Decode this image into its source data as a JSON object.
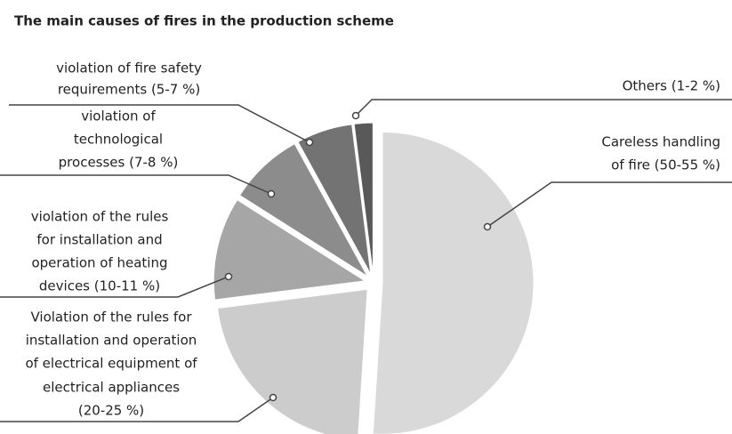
{
  "chart_data": {
    "type": "pie",
    "title": "The main causes of fires in the production scheme",
    "categories": [
      [
        "Careless handling",
        "of fire (50-55 %)"
      ],
      [
        "Violation of the rules for",
        "installation and operation",
        "of electrical equipment of",
        "electrical appliances",
        "(20-25 %)"
      ],
      [
        "violation of the rules",
        "for installation and",
        "operation of heating",
        "devices (10-11 %)"
      ],
      [
        "violation of",
        "technological",
        "processes (7-8 %)"
      ],
      [
        "violation of fire safety",
        "requirements (5-7 %)"
      ],
      [
        "Others (1-2 %)"
      ]
    ],
    "values": [
      51,
      22,
      11,
      8,
      6,
      2
    ],
    "colors": [
      "#d9d9d9",
      "#cccccc",
      "#a6a6a6",
      "#8c8c8c",
      "#737373",
      "#595959"
    ]
  }
}
